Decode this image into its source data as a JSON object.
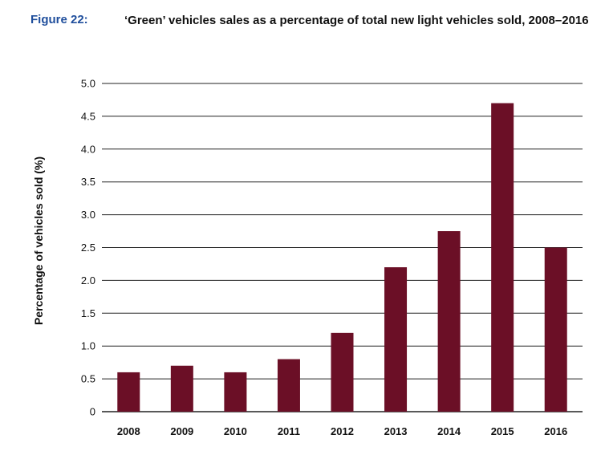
{
  "figure_label": "Figure 22:",
  "figure_title": "‘Green’ vehicles sales as a percentage of total new light vehicles sold, 2008–2016",
  "colors": {
    "bar": "#6b0f26",
    "grid": "#222222",
    "label": "#1f4e9c"
  },
  "chart_data": {
    "type": "bar",
    "title": "‘Green’ vehicles sales as a percentage of total new light vehicles sold, 2008–2016",
    "xlabel": "",
    "ylabel": "Percentage of vehicles sold (%)",
    "categories": [
      "2008",
      "2009",
      "2010",
      "2011",
      "2012",
      "2013",
      "2014",
      "2015",
      "2016"
    ],
    "values": [
      0.6,
      0.7,
      0.6,
      0.8,
      1.2,
      2.2,
      2.75,
      4.7,
      2.5
    ],
    "ylim": [
      0,
      5.0
    ],
    "yticks": [
      "0",
      "0.5",
      "1.0",
      "1.5",
      "2.0",
      "2.5",
      "3.0",
      "3.5",
      "4.0",
      "4.5",
      "5.0"
    ],
    "grid": true,
    "legend": "none"
  }
}
